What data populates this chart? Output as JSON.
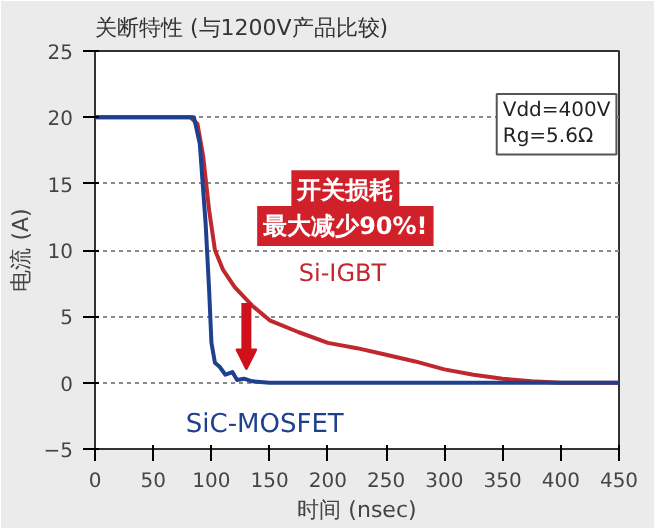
{
  "chart_data": {
    "type": "line",
    "title": "关断特性 (与1200V产品比较)",
    "xlabel": "时间 (nsec)",
    "ylabel": "电流 (A)",
    "xlim": [
      0,
      450
    ],
    "ylim": [
      -5,
      25
    ],
    "xticks": [
      0,
      50,
      100,
      150,
      200,
      250,
      300,
      350,
      400,
      450
    ],
    "yticks": [
      -5,
      0,
      5,
      10,
      15,
      20,
      25
    ],
    "grid": "y",
    "legend": false,
    "series": [
      {
        "name": "Si-IGBT",
        "color": "#c0282d",
        "x": [
          0,
          82,
          88,
          93,
          98,
          103,
          110,
          120,
          135,
          150,
          175,
          200,
          225,
          250,
          275,
          300,
          325,
          350,
          375,
          400,
          450
        ],
        "values": [
          20,
          20,
          19.5,
          17,
          13,
          10,
          8.5,
          7.2,
          5.8,
          4.7,
          3.8,
          3,
          2.6,
          2.1,
          1.6,
          1,
          0.6,
          0.3,
          0.1,
          0,
          0
        ]
      },
      {
        "name": "SiC-MOSFET",
        "color": "#1f3f8f",
        "x": [
          0,
          80,
          85,
          90,
          95,
          98,
          100,
          103,
          107,
          112,
          118,
          122,
          128,
          135,
          150,
          450
        ],
        "values": [
          20,
          20,
          20,
          18,
          12,
          7,
          3,
          1.5,
          1.2,
          0.6,
          0.8,
          0.2,
          0.3,
          0.1,
          0,
          0
        ]
      }
    ],
    "annotations": [
      "Vdd=400V\nRg=5.6Ω",
      "开关损耗",
      "最大减少90%!"
    ]
  }
}
